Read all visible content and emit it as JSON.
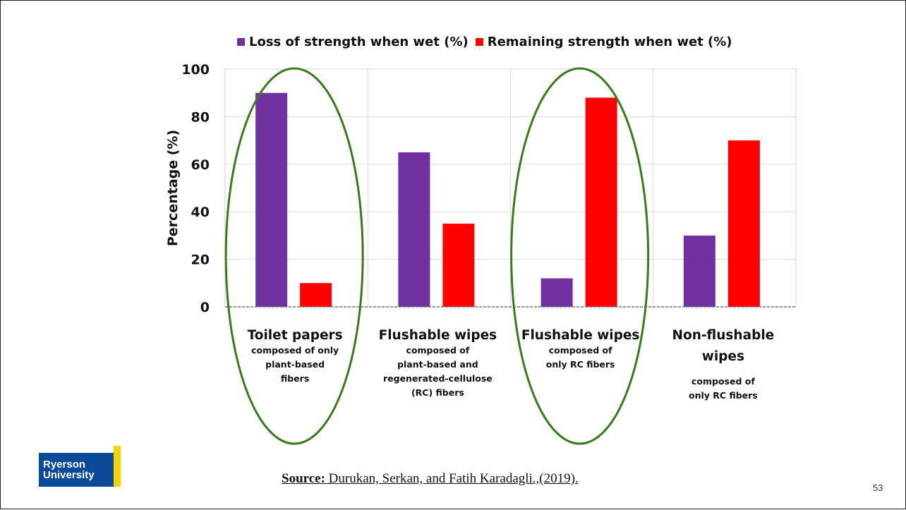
{
  "legend": {
    "loss_label": "Loss of strength when wet  (%)",
    "remaining_label": "Remaining strength when wet  (%)"
  },
  "colors": {
    "loss": "#7030a0",
    "remaining": "#ff0000",
    "ellipse": "#3a7a1e",
    "logo_blue": "#0b4a99",
    "logo_yellow": "#f2d500"
  },
  "chart_data": {
    "type": "bar",
    "ylabel": "Percentage (%)",
    "ylim": [
      0,
      100
    ],
    "yticks": [
      0,
      20,
      40,
      60,
      80,
      100
    ],
    "grid": true,
    "legend_position": "top",
    "categories": [
      {
        "title": [
          "Toilet papers"
        ],
        "desc": [
          "composed of only",
          "plant-based",
          "fibers"
        ]
      },
      {
        "title": [
          "Flushable wipes"
        ],
        "desc": [
          "composed of",
          "plant-based and",
          "regenerated-cellulose",
          "(RC) fibers"
        ]
      },
      {
        "title": [
          "Flushable wipes"
        ],
        "desc": [
          "composed of",
          "only RC fibers"
        ]
      },
      {
        "title": [
          "Non-flushable",
          "wipes"
        ],
        "desc": [
          "composed of",
          "only RC fibers"
        ]
      }
    ],
    "series": [
      {
        "name": "Loss of strength when wet  (%)",
        "values": [
          90,
          65,
          12,
          30
        ]
      },
      {
        "name": "Remaining strength when wet  (%)",
        "values": [
          10,
          35,
          88,
          70
        ]
      }
    ],
    "highlighted_categories": [
      0,
      2
    ]
  },
  "source": {
    "label": "Source:",
    "text": " Durukan, Serkan, and Fatih Karadagli.,(2019)."
  },
  "logo": {
    "line1": "Ryerson",
    "line2": "University"
  },
  "page_number": "53"
}
